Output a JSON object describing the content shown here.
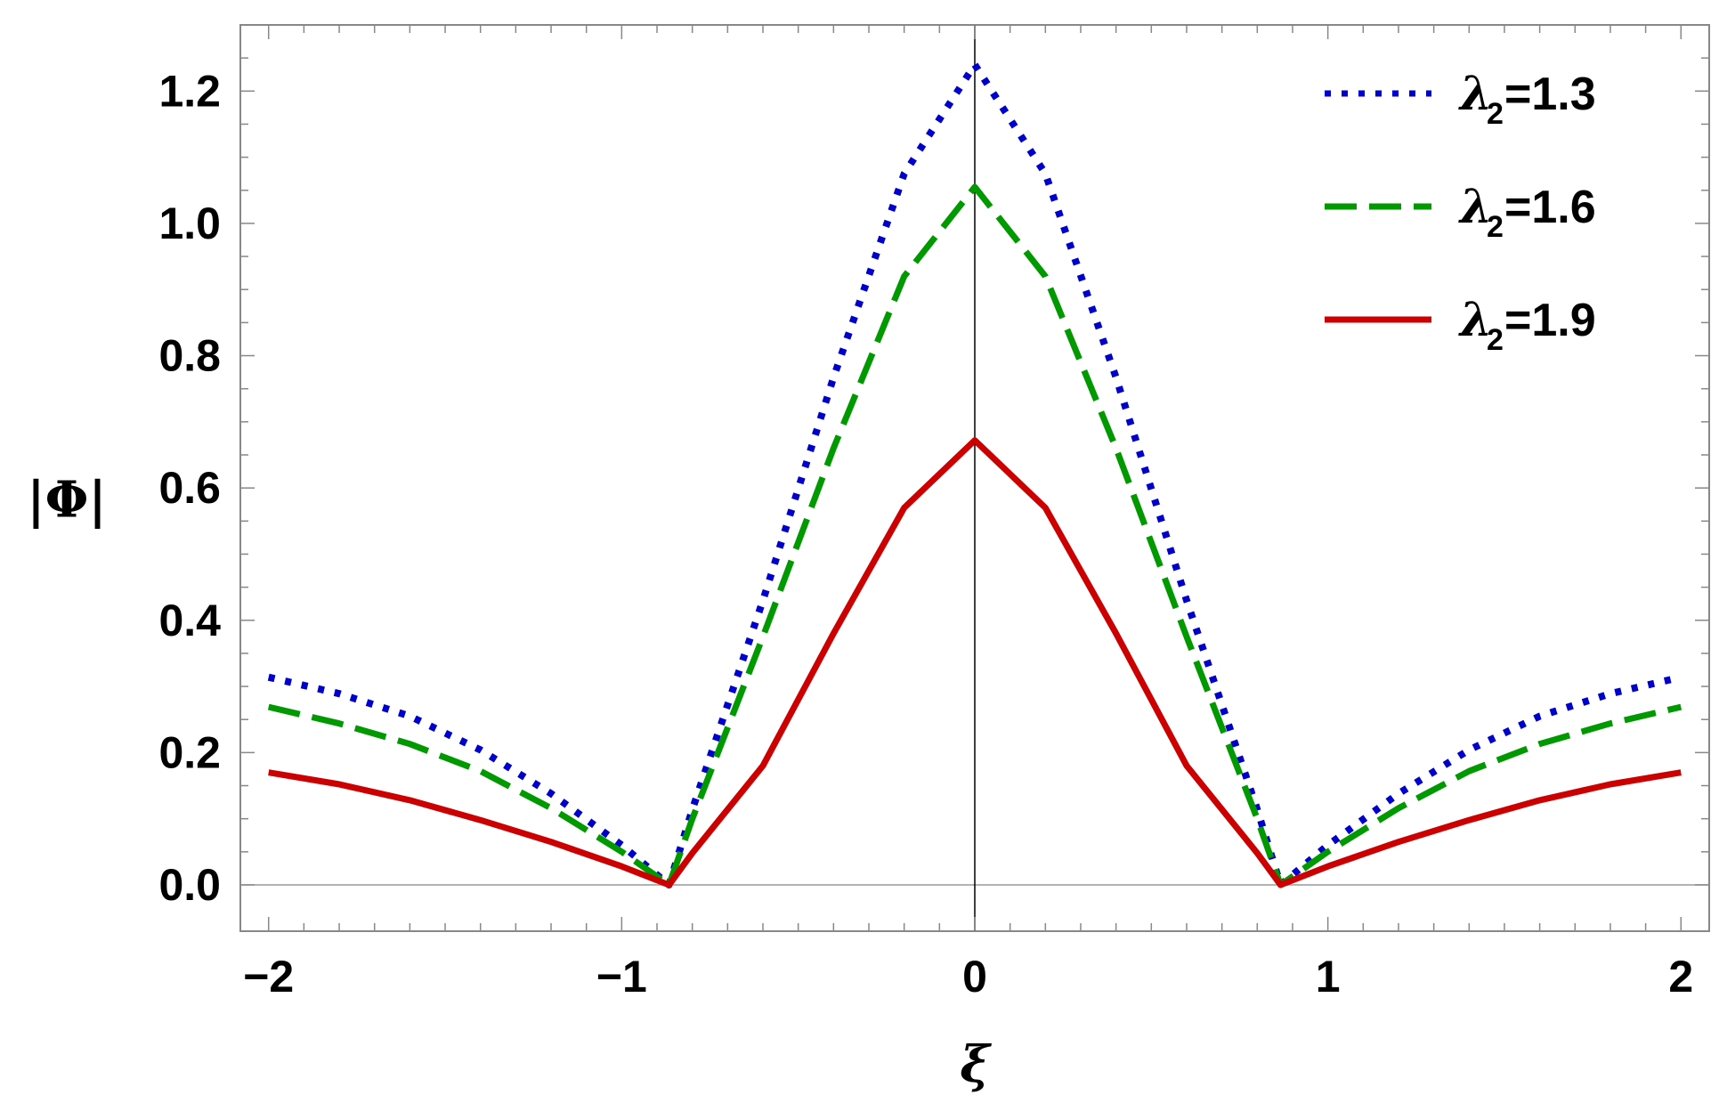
{
  "chart_data": {
    "type": "line",
    "xlabel": "ξ",
    "ylabel": "|Φ|",
    "xlim": [
      -2.08,
      2.08
    ],
    "ylim": [
      -0.07,
      1.3
    ],
    "x_ticks": [
      -2,
      -1,
      0,
      1,
      2
    ],
    "x_tick_labels": [
      "−2",
      "−1",
      "0",
      "1",
      "2"
    ],
    "y_ticks": [
      0.0,
      0.2,
      0.4,
      0.6,
      0.8,
      1.0,
      1.2
    ],
    "y_tick_labels": [
      "0.0",
      "0.2",
      "0.4",
      "0.6",
      "0.8",
      "1.0",
      "1.2"
    ],
    "grid": false,
    "legend_position": "top-right",
    "x": [
      -2.0,
      -1.8,
      -1.6,
      -1.4,
      -1.2,
      -1.0,
      -0.866,
      -0.8,
      -0.6,
      -0.4,
      -0.2,
      0.0,
      0.2,
      0.4,
      0.6,
      0.8,
      0.866,
      1.0,
      1.2,
      1.4,
      1.6,
      1.8,
      2.0
    ],
    "series": [
      {
        "legend_symbol": "λ",
        "legend_subscript": "2",
        "legend_value": "=1.3",
        "color": "#0000cc",
        "style": "dotted",
        "values": [
          0.314,
          0.289,
          0.255,
          0.204,
          0.138,
          0.06,
          0.0,
          0.114,
          0.43,
          0.767,
          1.075,
          1.24,
          1.075,
          0.767,
          0.43,
          0.114,
          0.0,
          0.06,
          0.138,
          0.204,
          0.255,
          0.289,
          0.314
        ]
      },
      {
        "legend_symbol": "λ",
        "legend_subscript": "2",
        "legend_value": "=1.6",
        "color": "#009900",
        "style": "dashed",
        "values": [
          0.269,
          0.244,
          0.213,
          0.172,
          0.116,
          0.05,
          0.0,
          0.1,
          0.375,
          0.66,
          0.92,
          1.055,
          0.92,
          0.66,
          0.375,
          0.1,
          0.0,
          0.05,
          0.116,
          0.172,
          0.213,
          0.244,
          0.269
        ]
      },
      {
        "legend_symbol": "λ",
        "legend_subscript": "2",
        "legend_value": "=1.9",
        "color": "#cc0000",
        "style": "solid",
        "values": [
          0.17,
          0.152,
          0.128,
          0.098,
          0.065,
          0.028,
          0.0,
          0.048,
          0.18,
          0.38,
          0.57,
          0.672,
          0.57,
          0.38,
          0.18,
          0.048,
          0.0,
          0.028,
          0.065,
          0.098,
          0.128,
          0.152,
          0.17
        ]
      }
    ]
  }
}
